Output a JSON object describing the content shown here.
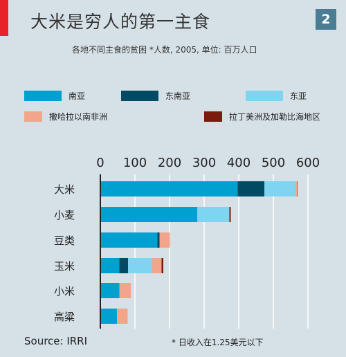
{
  "header": {
    "title": "大米是穷人的第一主食",
    "badge": "2",
    "subtitle": "各地不同主食的贫困 *人数, 2005, 单位: 百万人口"
  },
  "footer": {
    "source": "Source: IRRI",
    "footnote": "* 日收入在1.25美元以下"
  },
  "colors": {
    "south_asia": "#00a0d1",
    "southeast_asia": "#004b63",
    "east_asia": "#7ed4f1",
    "sub_saharan_africa": "#f2a58a",
    "latin_america": "#7a1b0e",
    "accent_red": "#e8212b",
    "background": "#d6e1e7"
  },
  "chart_data": {
    "type": "bar",
    "orientation": "horizontal",
    "stacked": true,
    "categories": [
      "大米",
      "小麦",
      "豆类",
      "玉米",
      "小米",
      "高粱"
    ],
    "series": [
      {
        "name": "南亚",
        "color": "#00a0d1",
        "values": [
          397,
          280,
          165,
          55,
          55,
          48
        ]
      },
      {
        "name": "东南亚",
        "color": "#004b63",
        "values": [
          77,
          0,
          6,
          25,
          0,
          0
        ]
      },
      {
        "name": "东亚",
        "color": "#7ed4f1",
        "values": [
          90,
          93,
          0,
          70,
          0,
          0
        ]
      },
      {
        "name": "撒哈拉以南非洲",
        "color": "#f2a58a",
        "values": [
          5,
          0,
          30,
          27,
          33,
          31
        ]
      },
      {
        "name": "拉丁美洲及加勒比海地区",
        "color": "#7a1b0e",
        "values": [
          1,
          4,
          0,
          5,
          0,
          0
        ]
      }
    ],
    "xlim": [
      0,
      600
    ],
    "xticks": [
      0,
      100,
      200,
      300,
      400,
      500,
      600
    ],
    "legend_position": "top",
    "grid": true
  }
}
